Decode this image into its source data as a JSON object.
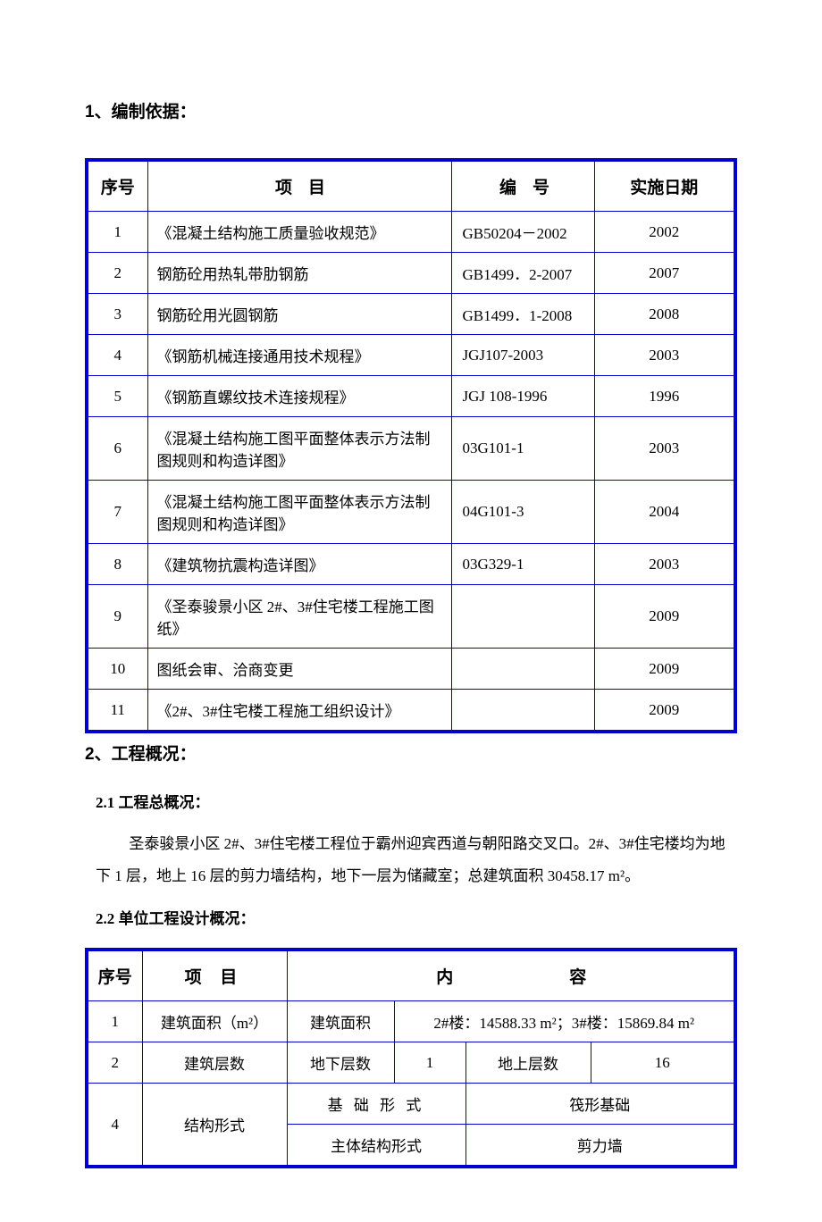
{
  "headings": {
    "section1": "1、编制依据：",
    "section2": "2、工程概况：",
    "sub21_label": "2.1 工程总概况：",
    "sub21_body": "圣泰骏景小区 2#、3#住宅楼工程位于霸州迎宾西道与朝阳路交叉口。2#、3#住宅楼均为地下 1 层，地上 16 层的剪力墙结构，地下一层为储藏室；总建筑面积 30458.17 m²。",
    "sub22_label": "2.2 单位工程设计概况："
  },
  "table1": {
    "headers": {
      "seq": "序号",
      "item": "项目",
      "code": "编号",
      "date": "实施日期"
    },
    "rows": [
      {
        "seq": "1",
        "item": "《混凝土结构施工质量验收规范》",
        "code": "GB50204－2002",
        "date": "2002"
      },
      {
        "seq": "2",
        "item": "钢筋砼用热轧带肋钢筋",
        "code": "GB1499．2-2007",
        "date": "2007"
      },
      {
        "seq": "3",
        "item": "钢筋砼用光圆钢筋",
        "code": "GB1499．1-2008",
        "date": "2008"
      },
      {
        "seq": "4",
        "item": "《钢筋机械连接通用技术规程》",
        "code": "JGJ107-2003",
        "date": "2003"
      },
      {
        "seq": "5",
        "item": "《钢筋直螺纹技术连接规程》",
        "code": "JGJ 108-1996",
        "date": "1996"
      },
      {
        "seq": "6",
        "item": "《混凝土结构施工图平面整体表示方法制图规则和构造详图》",
        "code": "03G101-1",
        "date": "2003"
      },
      {
        "seq": "7",
        "item": "《混凝土结构施工图平面整体表示方法制图规则和构造详图》",
        "code": "04G101-3",
        "date": "2004"
      },
      {
        "seq": "8",
        "item": "《建筑物抗震构造详图》",
        "code": "03G329-1",
        "date": "2003"
      },
      {
        "seq": "9",
        "item": "《圣泰骏景小区 2#、3#住宅楼工程施工图纸》",
        "code": "",
        "date": "2009"
      },
      {
        "seq": "10",
        "item": "图纸会审、洽商变更",
        "code": "",
        "date": "2009"
      },
      {
        "seq": "11",
        "item": "《2#、3#住宅楼工程施工组织设计》",
        "code": "",
        "date": "2009"
      }
    ]
  },
  "table2": {
    "headers": {
      "seq": "序号",
      "item": "项 目",
      "content": "内容"
    },
    "row1": {
      "seq": "1",
      "item": "建筑面积（m²）",
      "label": "建筑面积",
      "value": "2#楼：14588.33 m²；3#楼：15869.84 m²"
    },
    "row2": {
      "seq": "2",
      "item": "建筑层数",
      "underground_label": "地下层数",
      "underground_value": "1",
      "above_label": "地上层数",
      "above_value": "16"
    },
    "row4": {
      "seq": "4",
      "item": "结构形式",
      "foundation_label": "基 础 形 式",
      "foundation_value": "筏形基础",
      "structure_label": "主体结构形式",
      "structure_value": "剪力墙"
    }
  },
  "colors": {
    "table_border": "#0000cc",
    "background": "#ffffff",
    "text": "#000000"
  }
}
